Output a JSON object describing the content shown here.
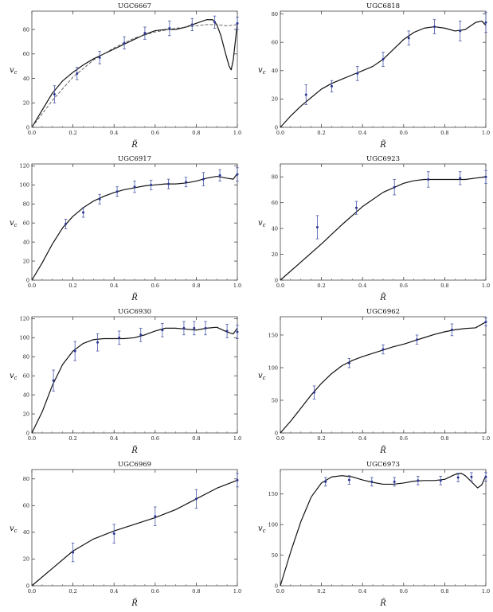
{
  "chart_data": [
    {
      "type": "line",
      "title": "UGC6667",
      "xlabel": "R̃",
      "ylabel": "v_c",
      "xlim": [
        0,
        1.0
      ],
      "ylim": [
        0,
        95
      ],
      "xticks": [
        "0.0",
        "0.2",
        "0.4",
        "0.6",
        "0.8",
        "1.0"
      ],
      "yticks": [
        0,
        20,
        40,
        60,
        80
      ],
      "grid": false,
      "series": [
        {
          "style": "solid",
          "x": [
            0,
            0.05,
            0.1,
            0.15,
            0.2,
            0.25,
            0.3,
            0.35,
            0.4,
            0.45,
            0.5,
            0.55,
            0.6,
            0.65,
            0.7,
            0.75,
            0.8,
            0.85,
            0.88,
            0.9,
            0.92,
            0.94,
            0.96,
            0.97,
            0.98,
            0.99,
            1.0
          ],
          "y": [
            0,
            14,
            28,
            38,
            45,
            51,
            56,
            60,
            64,
            68,
            72,
            76,
            79,
            80,
            80,
            82,
            85,
            88,
            88,
            84,
            75,
            62,
            50,
            47,
            55,
            70,
            85
          ]
        },
        {
          "style": "dashed",
          "x": [
            0,
            0.1,
            0.2,
            0.3,
            0.4,
            0.5,
            0.6,
            0.7,
            0.8,
            0.85,
            0.9,
            0.95,
            1.0
          ],
          "y": [
            0,
            22,
            41,
            55,
            65,
            73,
            78,
            81,
            83,
            84,
            84,
            83,
            84
          ]
        },
        {
          "style": "errorbar",
          "x": [
            0.11,
            0.22,
            0.33,
            0.45,
            0.55,
            0.67,
            0.78,
            0.89,
            1.0
          ],
          "y": [
            27,
            44,
            57,
            69,
            77,
            81,
            84,
            86,
            85
          ],
          "err": [
            7,
            5,
            5,
            5,
            5,
            6,
            5,
            5,
            5
          ]
        }
      ]
    },
    {
      "type": "line",
      "title": "UGC6818",
      "xlabel": "R̃",
      "ylabel": "v_c",
      "xlim": [
        0,
        1.0
      ],
      "ylim": [
        0,
        82
      ],
      "xticks": [
        "0.0",
        "0.2",
        "0.4",
        "0.6",
        "0.8",
        "1.0"
      ],
      "yticks": [
        0,
        20,
        40,
        60,
        80
      ],
      "grid": false,
      "series": [
        {
          "style": "solid",
          "x": [
            0,
            0.05,
            0.1,
            0.15,
            0.2,
            0.25,
            0.3,
            0.35,
            0.4,
            0.45,
            0.5,
            0.55,
            0.6,
            0.65,
            0.7,
            0.75,
            0.8,
            0.85,
            0.9,
            0.95,
            0.98,
            1.0
          ],
          "y": [
            0,
            8,
            15,
            21,
            27,
            31,
            34,
            37,
            40,
            43,
            48,
            55,
            62,
            67,
            70,
            71,
            70,
            68,
            69,
            74,
            75,
            72
          ]
        },
        {
          "style": "errorbar",
          "x": [
            0.125,
            0.25,
            0.375,
            0.5,
            0.625,
            0.75,
            0.875,
            1.0
          ],
          "y": [
            23,
            29,
            38,
            48,
            63,
            71,
            68,
            74
          ],
          "err": [
            7,
            4,
            5,
            5,
            5,
            5,
            7,
            7
          ]
        }
      ]
    },
    {
      "type": "line",
      "title": "UGC6917",
      "xlabel": "R̃",
      "ylabel": "v_c",
      "xlim": [
        0,
        1.0
      ],
      "ylim": [
        0,
        122
      ],
      "xticks": [
        "0.0",
        "0.2",
        "0.4",
        "0.6",
        "0.8",
        "1.0"
      ],
      "yticks": [
        0,
        20,
        40,
        60,
        80,
        100,
        120
      ],
      "grid": false,
      "series": [
        {
          "style": "solid",
          "x": [
            0,
            0.05,
            0.1,
            0.15,
            0.2,
            0.25,
            0.3,
            0.35,
            0.4,
            0.45,
            0.5,
            0.55,
            0.6,
            0.65,
            0.7,
            0.75,
            0.8,
            0.85,
            0.9,
            0.95,
            0.98,
            1.0
          ],
          "y": [
            0,
            18,
            38,
            55,
            67,
            76,
            83,
            88,
            92,
            95,
            97,
            99,
            100,
            101,
            101,
            102,
            104,
            107,
            109,
            107,
            106,
            112
          ]
        },
        {
          "style": "errorbar",
          "x": [
            0.165,
            0.25,
            0.33,
            0.415,
            0.5,
            0.58,
            0.665,
            0.75,
            0.835,
            0.915,
            1.0
          ],
          "y": [
            59,
            71,
            85,
            93,
            98,
            100,
            101,
            103,
            106,
            110,
            111
          ],
          "err": [
            5,
            5,
            5,
            5,
            6,
            5,
            5,
            5,
            7,
            6,
            7
          ]
        }
      ]
    },
    {
      "type": "line",
      "title": "UGC6923",
      "xlabel": "R̃",
      "ylabel": "v_c",
      "xlim": [
        0,
        1.0
      ],
      "ylim": [
        0,
        90
      ],
      "xticks": [
        "0.0",
        "0.2",
        "0.4",
        "0.6",
        "0.8",
        "1.0"
      ],
      "yticks": [
        0,
        20,
        40,
        60,
        80
      ],
      "grid": false,
      "series": [
        {
          "style": "solid",
          "x": [
            0,
            0.1,
            0.2,
            0.3,
            0.4,
            0.5,
            0.6,
            0.65,
            0.7,
            0.75,
            0.8,
            0.85,
            0.9,
            0.95,
            1.0
          ],
          "y": [
            0,
            14,
            28,
            43,
            57,
            68,
            75,
            77,
            78,
            78,
            78,
            78,
            78,
            79,
            80
          ]
        },
        {
          "style": "errorbar",
          "x": [
            0.18,
            0.37,
            0.555,
            0.72,
            0.875,
            1.0
          ],
          "y": [
            41,
            56,
            72,
            78,
            79,
            80
          ],
          "err": [
            9,
            5,
            6,
            6,
            5,
            5
          ]
        }
      ]
    },
    {
      "type": "line",
      "title": "UGC6930",
      "xlabel": "R̃",
      "ylabel": "v_c",
      "xlim": [
        0,
        1.0
      ],
      "ylim": [
        0,
        122
      ],
      "xticks": [
        "0.0",
        "0.2",
        "0.4",
        "0.6",
        "0.8",
        "1.0"
      ],
      "yticks": [
        0,
        20,
        40,
        60,
        80,
        100,
        120
      ],
      "grid": false,
      "series": [
        {
          "style": "solid",
          "x": [
            0,
            0.05,
            0.1,
            0.15,
            0.2,
            0.25,
            0.3,
            0.35,
            0.4,
            0.45,
            0.5,
            0.55,
            0.6,
            0.65,
            0.7,
            0.75,
            0.8,
            0.85,
            0.9,
            0.95,
            0.98,
            1.0
          ],
          "y": [
            0,
            22,
            50,
            72,
            86,
            94,
            98,
            99,
            99,
            99,
            100,
            103,
            107,
            110,
            110,
            109,
            108,
            110,
            111,
            106,
            104,
            110
          ]
        },
        {
          "style": "errorbar",
          "x": [
            0.105,
            0.21,
            0.32,
            0.425,
            0.53,
            0.635,
            0.74,
            0.79,
            0.845,
            0.95,
            1.0
          ],
          "y": [
            55,
            86,
            95,
            100,
            103,
            108,
            110,
            110,
            110,
            107,
            106
          ],
          "err": [
            11,
            10,
            9,
            7,
            7,
            7,
            7,
            7,
            7,
            7,
            7
          ]
        }
      ]
    },
    {
      "type": "line",
      "title": "UGC6962",
      "xlabel": "R̃",
      "ylabel": "v_c",
      "xlim": [
        0,
        1.0
      ],
      "ylim": [
        0,
        178
      ],
      "xticks": [
        "0.0",
        "0.2",
        "0.4",
        "0.6",
        "0.8",
        "1.0"
      ],
      "yticks": [
        0,
        50,
        100,
        150
      ],
      "grid": false,
      "series": [
        {
          "style": "solid",
          "x": [
            0,
            0.05,
            0.1,
            0.15,
            0.2,
            0.25,
            0.3,
            0.35,
            0.4,
            0.45,
            0.5,
            0.55,
            0.6,
            0.65,
            0.7,
            0.75,
            0.8,
            0.85,
            0.9,
            0.95,
            1.0
          ],
          "y": [
            0,
            18,
            38,
            58,
            76,
            91,
            103,
            111,
            117,
            122,
            127,
            132,
            136,
            141,
            146,
            151,
            155,
            158,
            160,
            161,
            170
          ]
        },
        {
          "style": "errorbar",
          "x": [
            0.165,
            0.335,
            0.5,
            0.665,
            0.835,
            1.0
          ],
          "y": [
            62,
            107,
            128,
            143,
            158,
            170
          ],
          "err": [
            10,
            7,
            7,
            7,
            9,
            6
          ]
        }
      ]
    },
    {
      "type": "line",
      "title": "UGC6969",
      "xlabel": "R̃",
      "ylabel": "v_c",
      "xlim": [
        0,
        1.0
      ],
      "ylim": [
        0,
        87
      ],
      "xticks": [
        "0.0",
        "0.2",
        "0.4",
        "0.6",
        "0.8",
        "1.0"
      ],
      "yticks": [
        0,
        20,
        40,
        60,
        80
      ],
      "grid": false,
      "series": [
        {
          "style": "solid",
          "x": [
            0,
            0.1,
            0.2,
            0.3,
            0.4,
            0.5,
            0.6,
            0.7,
            0.8,
            0.9,
            1.0
          ],
          "y": [
            0,
            13,
            26,
            35,
            41,
            46,
            51,
            57,
            65,
            73,
            79
          ]
        },
        {
          "style": "errorbar",
          "x": [
            0.2,
            0.4,
            0.6,
            0.8,
            1.0
          ],
          "y": [
            25,
            39,
            52,
            65,
            79
          ],
          "err": [
            7,
            7,
            7,
            7,
            5
          ]
        }
      ]
    },
    {
      "type": "line",
      "title": "UGC6973",
      "xlabel": "R̃",
      "ylabel": "v_c",
      "xlim": [
        0,
        1.0
      ],
      "ylim": [
        0,
        190
      ],
      "xticks": [
        "0.0",
        "0.2",
        "0.4",
        "0.6",
        "0.8",
        "1.0"
      ],
      "yticks": [
        0,
        50,
        100,
        150
      ],
      "grid": false,
      "series": [
        {
          "style": "solid",
          "x": [
            0,
            0.05,
            0.1,
            0.15,
            0.2,
            0.25,
            0.3,
            0.35,
            0.4,
            0.45,
            0.5,
            0.55,
            0.6,
            0.65,
            0.7,
            0.75,
            0.8,
            0.85,
            0.88,
            0.9,
            0.93,
            0.96,
            0.98,
            1.0
          ],
          "y": [
            0,
            55,
            105,
            145,
            168,
            178,
            180,
            178,
            173,
            169,
            166,
            166,
            168,
            171,
            172,
            172,
            174,
            182,
            184,
            180,
            170,
            160,
            165,
            180
          ]
        },
        {
          "style": "errorbar",
          "x": [
            0.22,
            0.335,
            0.445,
            0.555,
            0.67,
            0.78,
            0.865,
            0.93,
            1.0
          ],
          "y": [
            170,
            173,
            170,
            170,
            172,
            172,
            177,
            178,
            178
          ],
          "err": [
            7,
            7,
            7,
            7,
            7,
            7,
            7,
            7,
            7
          ]
        }
      ]
    }
  ]
}
